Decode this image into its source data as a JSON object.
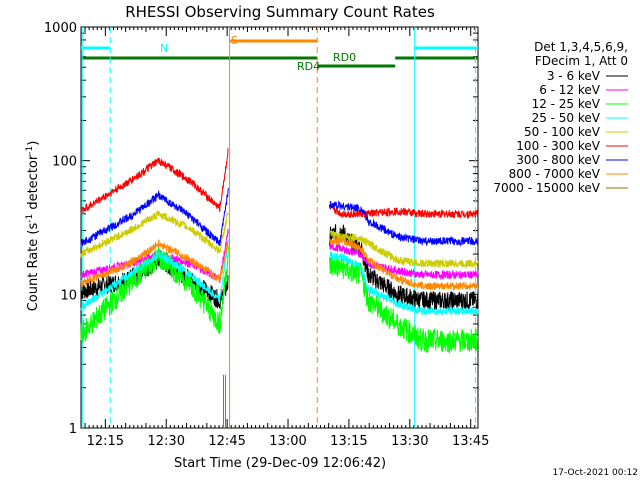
{
  "chart_data": {
    "type": "line",
    "title": "RHESSI Observing Summary Count Rates",
    "xlabel": "Start Time (29-Dec-09 12:06:42)",
    "ylabel_main": "Count Rate (s",
    "ylabel_sup1": "-1",
    "ylabel_mid": " detector",
    "ylabel_sup2": "-1",
    "ylabel_end": ")",
    "y_scale": "log",
    "ylim": [
      1,
      1000
    ],
    "xlim_minutes": [
      12.15,
      13.78
    ],
    "x_ticks": [
      {
        "label": "12:15",
        "value": 12.25
      },
      {
        "label": "12:30",
        "value": 12.5
      },
      {
        "label": "12:45",
        "value": 12.75
      },
      {
        "label": "13:00",
        "value": 13.0
      },
      {
        "label": "13:15",
        "value": 13.25
      },
      {
        "label": "13:30",
        "value": 13.5
      },
      {
        "label": "13:45",
        "value": 13.75
      }
    ],
    "y_ticks": [
      {
        "label": "1",
        "value": 1
      },
      {
        "label": "10",
        "value": 10
      },
      {
        "label": "100",
        "value": 100
      },
      {
        "label": "1000",
        "value": 1000
      }
    ],
    "legend": {
      "header": [
        "Det 1,3,4,5,6,9,",
        "FDecim 1, Att 0"
      ],
      "placement": "right"
    },
    "series": [
      {
        "name": "3 - 6 keV",
        "color": "#000000",
        "points": [
          [
            12.15,
            10.5
          ],
          [
            12.35,
            13
          ],
          [
            12.47,
            18
          ],
          [
            12.6,
            13
          ],
          [
            12.72,
            9
          ],
          [
            12.755,
            12
          ],
          [
            13.22,
            30
          ],
          [
            13.25,
            25
          ],
          [
            13.3,
            22
          ],
          [
            13.33,
            14
          ],
          [
            13.45,
            10
          ],
          [
            13.55,
            9
          ],
          [
            13.78,
            9
          ]
        ]
      },
      {
        "name": "6 - 12 keV",
        "color": "#ff00ff",
        "points": [
          [
            12.15,
            14
          ],
          [
            12.35,
            17
          ],
          [
            12.47,
            20
          ],
          [
            12.6,
            17
          ],
          [
            12.72,
            13
          ],
          [
            12.755,
            30
          ],
          [
            13.22,
            22
          ],
          [
            13.25,
            21
          ],
          [
            13.3,
            20
          ],
          [
            13.33,
            17
          ],
          [
            13.45,
            15
          ],
          [
            13.55,
            14
          ],
          [
            13.78,
            14
          ]
        ]
      },
      {
        "name": "12 - 25 keV",
        "color": "#00ff00",
        "points": [
          [
            12.15,
            5
          ],
          [
            12.35,
            12
          ],
          [
            12.47,
            19
          ],
          [
            12.6,
            12
          ],
          [
            12.72,
            6
          ],
          [
            12.755,
            20
          ],
          [
            13.22,
            16
          ],
          [
            13.25,
            15
          ],
          [
            13.3,
            14
          ],
          [
            13.33,
            9
          ],
          [
            13.45,
            6
          ],
          [
            13.55,
            4.5
          ],
          [
            13.78,
            4.5
          ]
        ]
      },
      {
        "name": "25 - 50 keV",
        "color": "#00ffff",
        "points": [
          [
            12.15,
            8
          ],
          [
            12.35,
            14
          ],
          [
            12.47,
            20
          ],
          [
            12.6,
            14
          ],
          [
            12.72,
            9
          ],
          [
            12.755,
            26
          ],
          [
            13.22,
            19
          ],
          [
            13.25,
            18
          ],
          [
            13.3,
            16
          ],
          [
            13.33,
            11
          ],
          [
            13.45,
            8.5
          ],
          [
            13.55,
            7.5
          ],
          [
            13.78,
            7.5
          ]
        ]
      },
      {
        "name": "50 - 100 keV",
        "color": "#cccc00",
        "points": [
          [
            12.15,
            20
          ],
          [
            12.35,
            30
          ],
          [
            12.47,
            40
          ],
          [
            12.6,
            31
          ],
          [
            12.72,
            21
          ],
          [
            12.755,
            42
          ],
          [
            13.22,
            27
          ],
          [
            13.25,
            27
          ],
          [
            13.3,
            26
          ],
          [
            13.33,
            24
          ],
          [
            13.45,
            18
          ],
          [
            13.55,
            17
          ],
          [
            13.78,
            17
          ]
        ]
      },
      {
        "name": "100 - 300 keV",
        "color": "#ff0000",
        "points": [
          [
            12.15,
            42
          ],
          [
            12.35,
            70
          ],
          [
            12.47,
            100
          ],
          [
            12.6,
            70
          ],
          [
            12.72,
            44
          ],
          [
            12.755,
            120
          ],
          [
            13.22,
            40
          ],
          [
            13.25,
            40
          ],
          [
            13.3,
            40
          ],
          [
            13.33,
            40
          ],
          [
            13.45,
            42
          ],
          [
            13.55,
            40
          ],
          [
            13.78,
            40
          ]
        ]
      },
      {
        "name": "300 - 800 keV",
        "color": "#0000ff",
        "points": [
          [
            12.15,
            24
          ],
          [
            12.35,
            38
          ],
          [
            12.47,
            55
          ],
          [
            12.6,
            38
          ],
          [
            12.72,
            24
          ],
          [
            12.755,
            60
          ],
          [
            13.22,
            46
          ],
          [
            13.25,
            45
          ],
          [
            13.3,
            44
          ],
          [
            13.33,
            35
          ],
          [
            13.45,
            27
          ],
          [
            13.55,
            25
          ],
          [
            13.78,
            25
          ]
        ]
      },
      {
        "name": "800 - 7000 keV",
        "color": "#ff8800",
        "points": [
          [
            12.15,
            12
          ],
          [
            12.35,
            17
          ],
          [
            12.47,
            24
          ],
          [
            12.6,
            18
          ],
          [
            12.72,
            13
          ],
          [
            12.755,
            25
          ],
          [
            13.22,
            25
          ],
          [
            13.25,
            24
          ],
          [
            13.3,
            22
          ],
          [
            13.33,
            18
          ],
          [
            13.45,
            13
          ],
          [
            13.55,
            11.5
          ],
          [
            13.78,
            11.5
          ]
        ]
      },
      {
        "name": "7000 - 15000 keV",
        "color": "#997700",
        "points": [
          [
            12.735,
            1
          ],
          [
            12.74,
            2.5
          ],
          [
            12.745,
            1
          ]
        ]
      }
    ],
    "annotations": {
      "N": {
        "label": "N",
        "color": "#00ffff"
      },
      "S": {
        "label": "S",
        "color": "#ff8800"
      },
      "RD0": {
        "label": "RD0",
        "color": "#007700"
      },
      "RD4": {
        "label": "RD4",
        "color": "#007700"
      }
    },
    "timestamp": "17-Oct-2021 00:12"
  }
}
